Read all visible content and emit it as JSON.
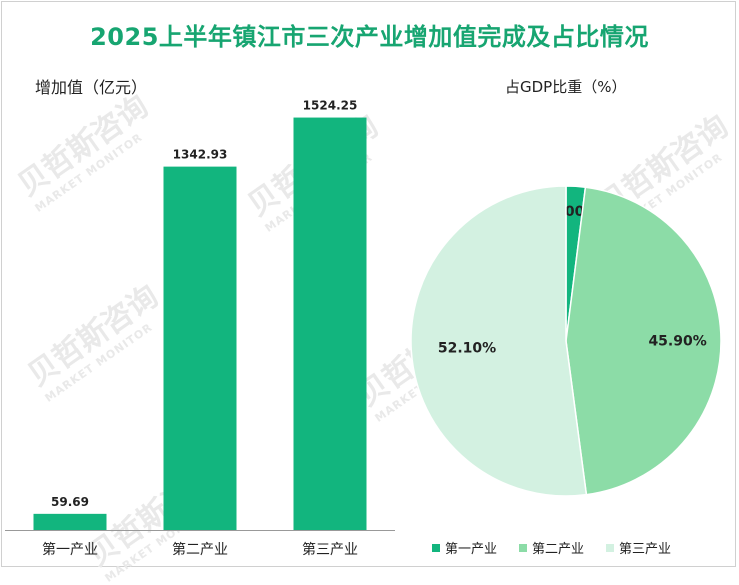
{
  "title": "2025上半年镇江市三次产业增加值完成及占比情况",
  "watermark": {
    "cn": "贝哲斯咨询",
    "en": "MARKET MONITOR"
  },
  "chart_data": [
    {
      "type": "bar",
      "unit_label": "增加值（亿元）",
      "categories": [
        "第一产业",
        "第二产业",
        "第三产业"
      ],
      "values": [
        59.69,
        1342.93,
        1524.25
      ],
      "value_labels": [
        "59.69",
        "1342.93",
        "1524.25"
      ],
      "ylim": [
        0,
        1700
      ],
      "grid": false,
      "color": "#12b57e"
    },
    {
      "type": "pie",
      "unit_label": "占GDP比重（%）",
      "categories": [
        "第一产业",
        "第二产业",
        "第三产业"
      ],
      "values": [
        2.0,
        45.9,
        52.1
      ],
      "value_labels": [
        "2.00%",
        "45.90%",
        "52.10%"
      ],
      "colors": [
        "#12b57e",
        "#8cdca7",
        "#d3f1e1"
      ],
      "legend_position": "bottom"
    }
  ]
}
